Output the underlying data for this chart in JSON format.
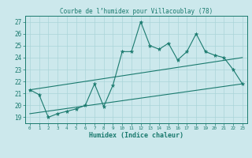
{
  "title": "Courbe de l’humidex pour Villacoublay (78)",
  "xlabel": "Humidex (Indice chaleur)",
  "bg_color": "#cce8ec",
  "line_color": "#1a7a6e",
  "grid_color": "#aad4d8",
  "xlim": [
    -0.5,
    23.5
  ],
  "ylim": [
    18.5,
    27.5
  ],
  "series1_x": [
    0,
    1,
    2,
    3,
    4,
    5,
    6,
    7,
    8,
    9,
    10,
    11,
    12,
    13,
    14,
    15,
    16,
    17,
    18,
    19,
    20,
    21,
    22,
    23
  ],
  "series1_y": [
    21.3,
    20.9,
    19.0,
    19.3,
    19.5,
    19.7,
    20.0,
    21.8,
    19.9,
    21.7,
    24.5,
    24.5,
    27.0,
    25.0,
    24.7,
    25.2,
    23.8,
    24.5,
    26.0,
    24.5,
    24.2,
    24.0,
    23.0,
    21.8
  ],
  "series2_x": [
    0,
    23
  ],
  "series2_y": [
    19.3,
    21.8
  ],
  "series3_x": [
    0,
    23
  ],
  "series3_y": [
    21.3,
    24.0
  ],
  "yticks": [
    19,
    20,
    21,
    22,
    23,
    24,
    25,
    26,
    27
  ]
}
